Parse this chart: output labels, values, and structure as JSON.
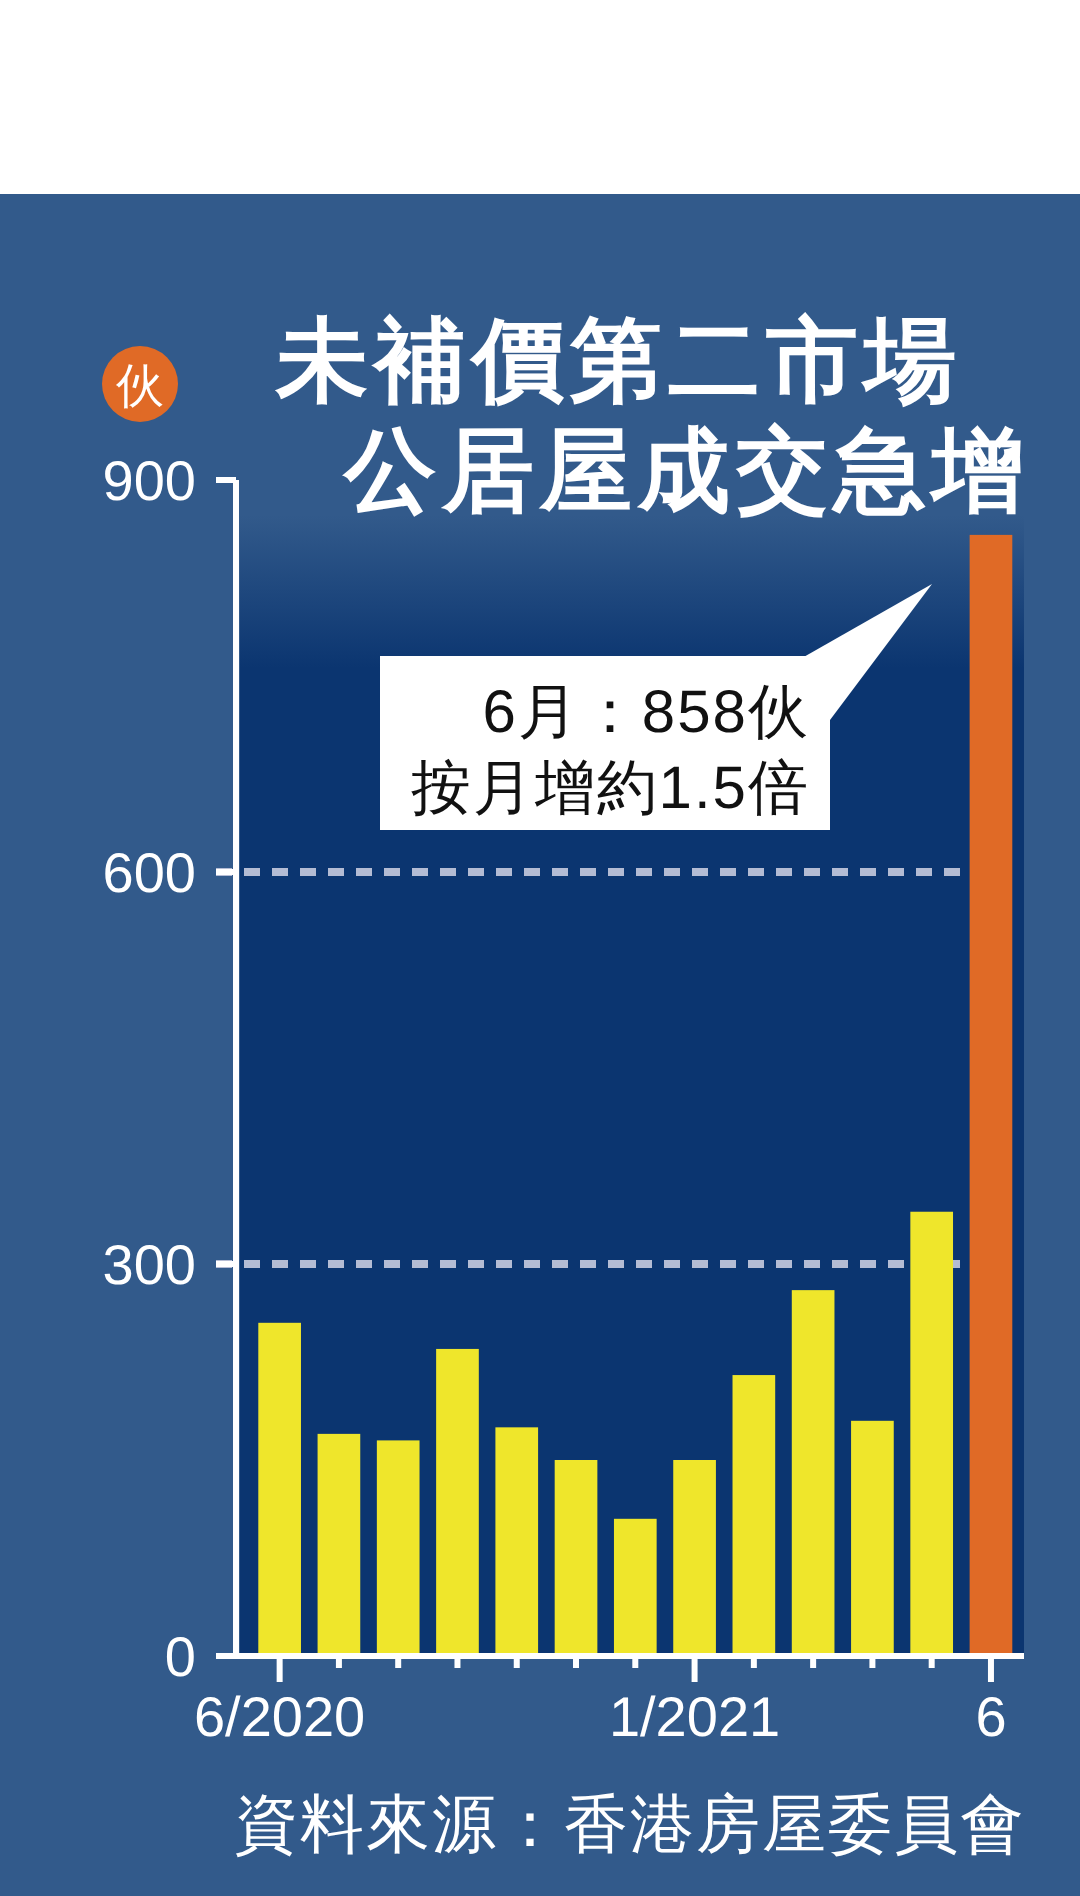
{
  "chart_data": {
    "type": "bar",
    "title": "未補價第二市場公居屋成交急增",
    "ylabel": "伙",
    "categories": [
      "6/2020",
      null,
      null,
      null,
      null,
      null,
      null,
      "1/2021",
      null,
      null,
      null,
      null,
      "6"
    ],
    "values": [
      255,
      170,
      165,
      235,
      175,
      150,
      105,
      150,
      215,
      280,
      180,
      340,
      858
    ],
    "colors": [
      "#efe62b",
      "#efe62b",
      "#efe62b",
      "#efe62b",
      "#efe62b",
      "#efe62b",
      "#efe62b",
      "#efe62b",
      "#efe62b",
      "#efe62b",
      "#efe62b",
      "#efe62b",
      "#e06a26"
    ],
    "ylim": [
      0,
      900
    ],
    "yticks": [
      0,
      300,
      600,
      900
    ],
    "grid": "y",
    "annotations": [
      "6月：858伙",
      "按月增約1.5倍",
      "資料來源：香港房屋委員會"
    ]
  }
}
